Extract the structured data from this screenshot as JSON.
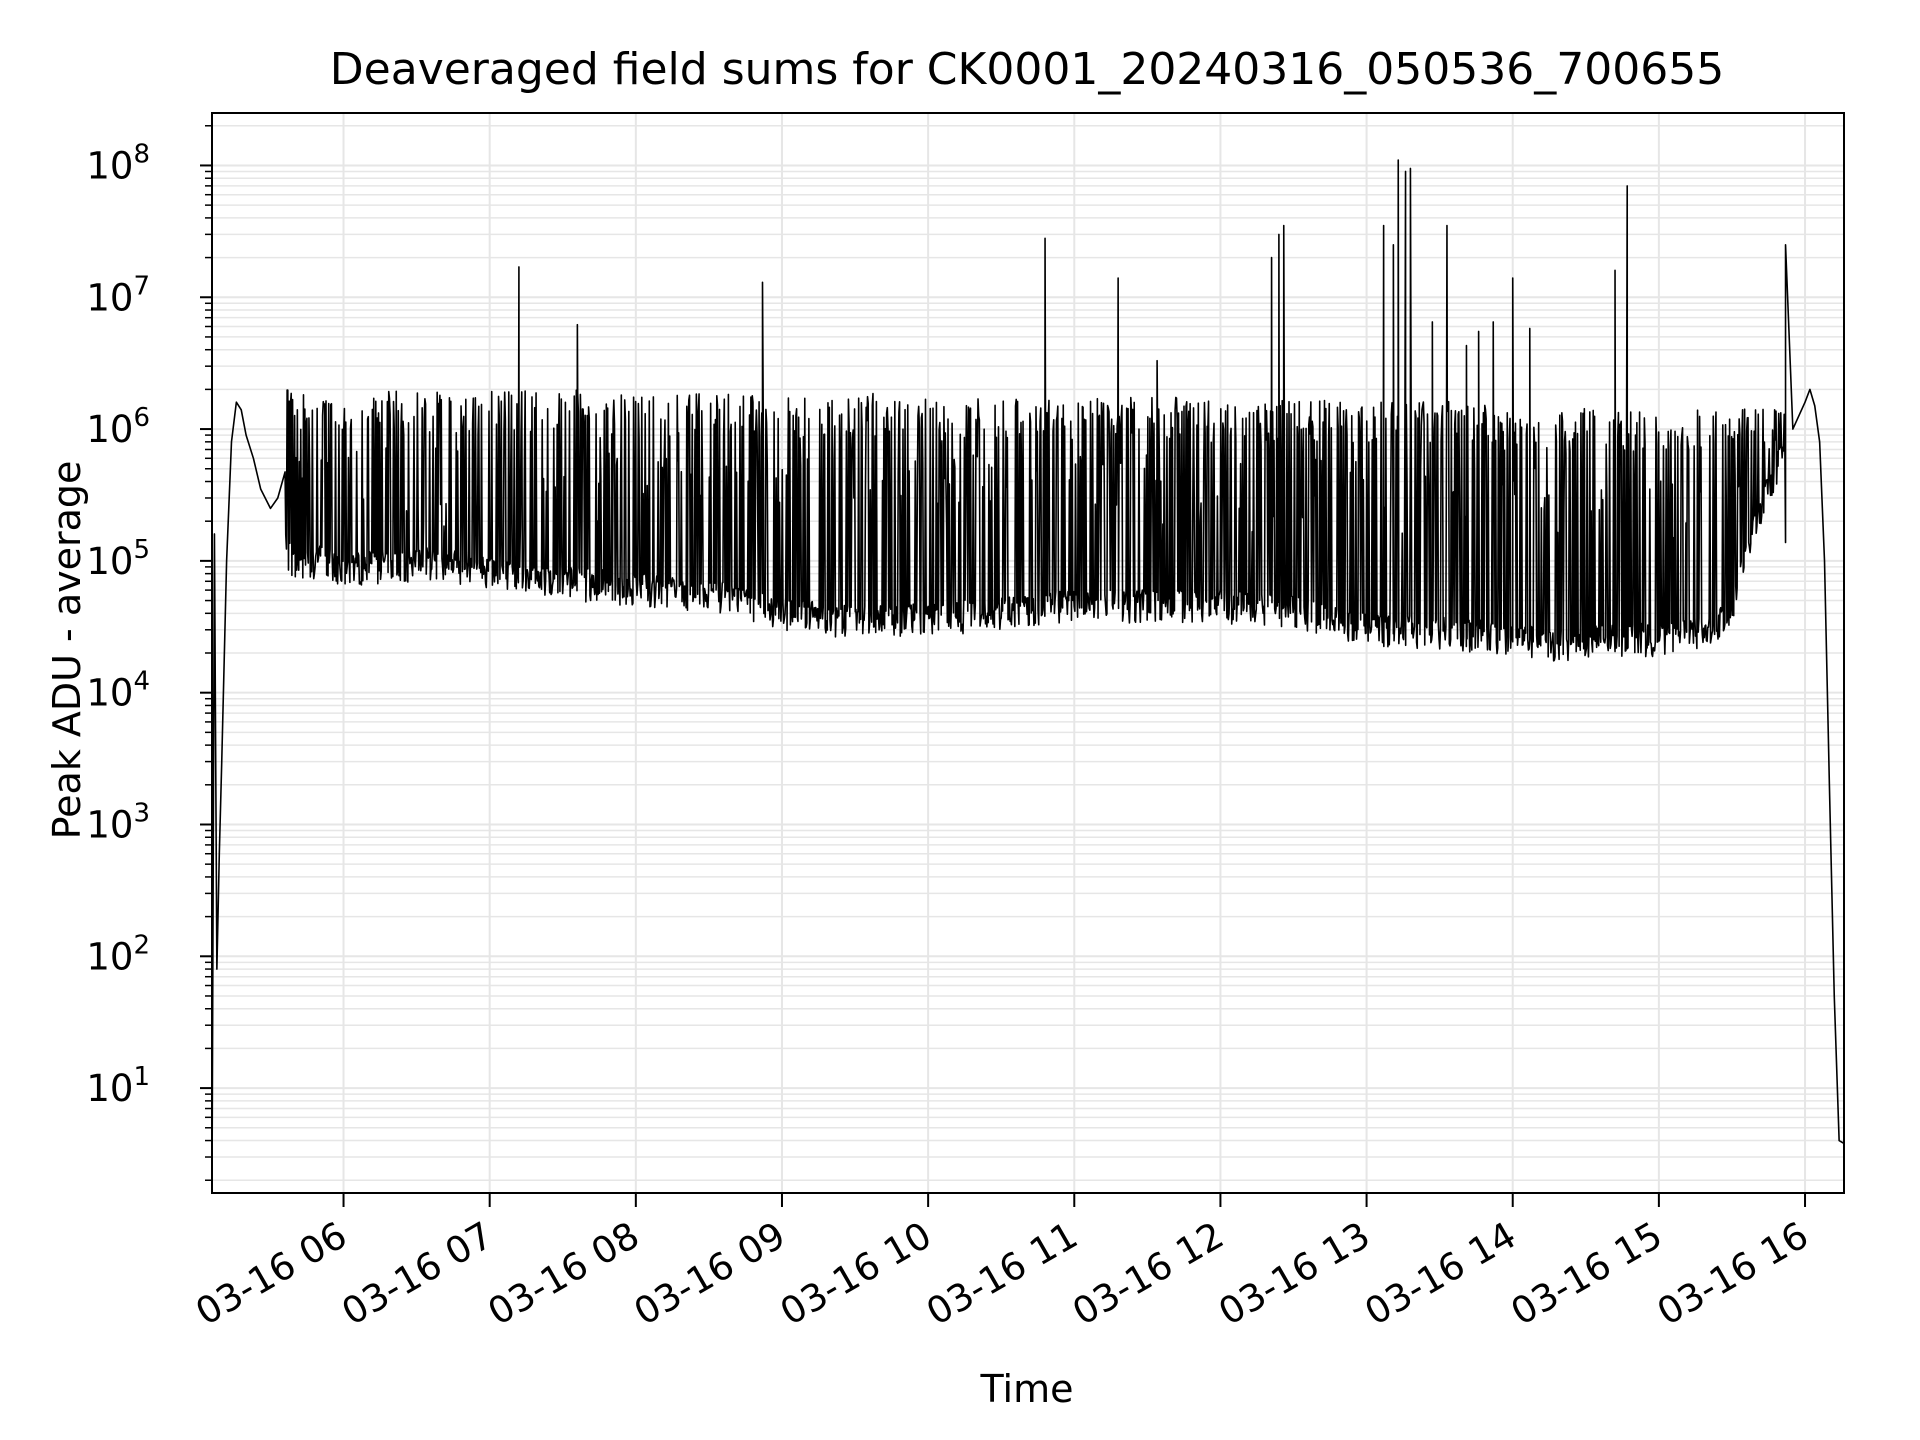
{
  "chart_data": {
    "type": "line",
    "title": "Deaveraged field sums for CK0001_20240316_050536_700655",
    "xlabel": "Time",
    "ylabel": "Peak ADU - average",
    "y_scale": "log",
    "ylim": [
      1.6,
      250000000
    ],
    "xlim": [
      "2024-03-16 05:06",
      "2024-03-16 16:16"
    ],
    "grid": true,
    "line_color": "#000000",
    "grid_color": "#e6e6e6",
    "x_ticks": [
      {
        "label": "03-16 06",
        "t": "2024-03-16 06:00"
      },
      {
        "label": "03-16 07",
        "t": "2024-03-16 07:00"
      },
      {
        "label": "03-16 08",
        "t": "2024-03-16 08:00"
      },
      {
        "label": "03-16 09",
        "t": "2024-03-16 09:00"
      },
      {
        "label": "03-16 10",
        "t": "2024-03-16 10:00"
      },
      {
        "label": "03-16 11",
        "t": "2024-03-16 11:00"
      },
      {
        "label": "03-16 12",
        "t": "2024-03-16 12:00"
      },
      {
        "label": "03-16 13",
        "t": "2024-03-16 13:00"
      },
      {
        "label": "03-16 14",
        "t": "2024-03-16 14:00"
      },
      {
        "label": "03-16 15",
        "t": "2024-03-16 15:00"
      },
      {
        "label": "03-16 16",
        "t": "2024-03-16 16:00"
      }
    ],
    "y_ticks": [
      {
        "base": "10",
        "exp": "1",
        "value": 10
      },
      {
        "base": "10",
        "exp": "2",
        "value": 100
      },
      {
        "base": "10",
        "exp": "3",
        "value": 1000
      },
      {
        "base": "10",
        "exp": "4",
        "value": 10000
      },
      {
        "base": "10",
        "exp": "5",
        "value": 100000
      },
      {
        "base": "10",
        "exp": "6",
        "value": 1000000
      },
      {
        "base": "10",
        "exp": "7",
        "value": 10000000
      },
      {
        "base": "10",
        "exp": "8",
        "value": 100000000
      }
    ],
    "series": [
      {
        "points": [
          [
            "2024-03-16 05:06",
            1.6
          ],
          [
            "2024-03-16 05:07",
            160000
          ],
          [
            "2024-03-16 05:08",
            80
          ],
          [
            "2024-03-16 05:09",
            600
          ],
          [
            "2024-03-16 05:10",
            3000
          ],
          [
            "2024-03-16 05:12",
            100000
          ],
          [
            "2024-03-16 05:14",
            800000
          ],
          [
            "2024-03-16 05:16",
            1600000
          ],
          [
            "2024-03-16 05:18",
            1400000
          ],
          [
            "2024-03-16 05:20",
            900000
          ],
          [
            "2024-03-16 05:23",
            600000
          ],
          [
            "2024-03-16 05:26",
            350000
          ],
          [
            "2024-03-16 05:30",
            250000
          ],
          [
            "2024-03-16 05:33",
            300000
          ],
          [
            "2024-03-16 05:36",
            120000
          ],
          [
            "2024-03-16 05:40",
            90000
          ],
          [
            "2024-03-16 05:50",
            100000
          ],
          [
            "2024-03-16 06:00",
            85000
          ],
          [
            "2024-03-16 06:20",
            90000
          ],
          [
            "2024-03-16 06:40",
            95000
          ],
          [
            "2024-03-16 07:00",
            80000
          ],
          [
            "2024-03-16 07:20",
            70000
          ],
          [
            "2024-03-16 07:40",
            65000
          ],
          [
            "2024-03-16 08:00",
            60000
          ],
          [
            "2024-03-16 08:20",
            55000
          ],
          [
            "2024-03-16 08:40",
            50000
          ],
          [
            "2024-03-16 09:00",
            40000
          ],
          [
            "2024-03-16 09:20",
            35000
          ],
          [
            "2024-03-16 09:40",
            35000
          ],
          [
            "2024-03-16 10:00",
            35000
          ],
          [
            "2024-03-16 10:30",
            40000
          ],
          [
            "2024-03-16 11:00",
            45000
          ],
          [
            "2024-03-16 11:30",
            45000
          ],
          [
            "2024-03-16 12:00",
            45000
          ],
          [
            "2024-03-16 12:30",
            40000
          ],
          [
            "2024-03-16 13:00",
            30000
          ],
          [
            "2024-03-16 13:30",
            28000
          ],
          [
            "2024-03-16 14:00",
            25000
          ],
          [
            "2024-03-16 14:20",
            22000
          ],
          [
            "2024-03-16 14:40",
            25000
          ],
          [
            "2024-03-16 15:00",
            25000
          ],
          [
            "2024-03-16 15:20",
            28000
          ],
          [
            "2024-03-16 15:30",
            40000
          ],
          [
            "2024-03-16 15:40",
            200000
          ],
          [
            "2024-03-16 15:50",
            600000
          ],
          [
            "2024-03-16 15:55",
            1000000
          ],
          [
            "2024-03-16 16:00",
            1600000
          ],
          [
            "2024-03-16 16:02",
            2000000
          ],
          [
            "2024-03-16 16:04",
            1500000
          ],
          [
            "2024-03-16 16:06",
            800000
          ],
          [
            "2024-03-16 16:08",
            100000
          ],
          [
            "2024-03-16 16:10",
            2000
          ],
          [
            "2024-03-16 16:12",
            50
          ],
          [
            "2024-03-16 16:14",
            4
          ],
          [
            "2024-03-16 16:16",
            3.8
          ]
        ],
        "spikes": [
          [
            "2024-03-16 07:12",
            17000000
          ],
          [
            "2024-03-16 07:36",
            6200000
          ],
          [
            "2024-03-16 08:52",
            13000000
          ],
          [
            "2024-03-16 10:48",
            28000000
          ],
          [
            "2024-03-16 11:18",
            14000000
          ],
          [
            "2024-03-16 11:34",
            3300000
          ],
          [
            "2024-03-16 12:21",
            20000000
          ],
          [
            "2024-03-16 12:24",
            30000000
          ],
          [
            "2024-03-16 12:26",
            35000000
          ],
          [
            "2024-03-16 13:07",
            35000000
          ],
          [
            "2024-03-16 13:11",
            25000000
          ],
          [
            "2024-03-16 13:13",
            110000000
          ],
          [
            "2024-03-16 13:16",
            90000000
          ],
          [
            "2024-03-16 13:18",
            95000000
          ],
          [
            "2024-03-16 13:27",
            6500000
          ],
          [
            "2024-03-16 13:33",
            35000000
          ],
          [
            "2024-03-16 13:41",
            4300000
          ],
          [
            "2024-03-16 13:46",
            5500000
          ],
          [
            "2024-03-16 13:52",
            6500000
          ],
          [
            "2024-03-16 14:00",
            14000000
          ],
          [
            "2024-03-16 14:07",
            5800000
          ],
          [
            "2024-03-16 14:42",
            16000000
          ],
          [
            "2024-03-16 14:47",
            70000000
          ],
          [
            "2024-03-16 15:52",
            25000000
          ]
        ],
        "oscillation_band": {
          "t_start": "2024-03-16 05:36",
          "t_end": "2024-03-16 15:52",
          "high_values": [
            1800000,
            1700000,
            1600000,
            1500000,
            1300000
          ]
        }
      }
    ]
  }
}
